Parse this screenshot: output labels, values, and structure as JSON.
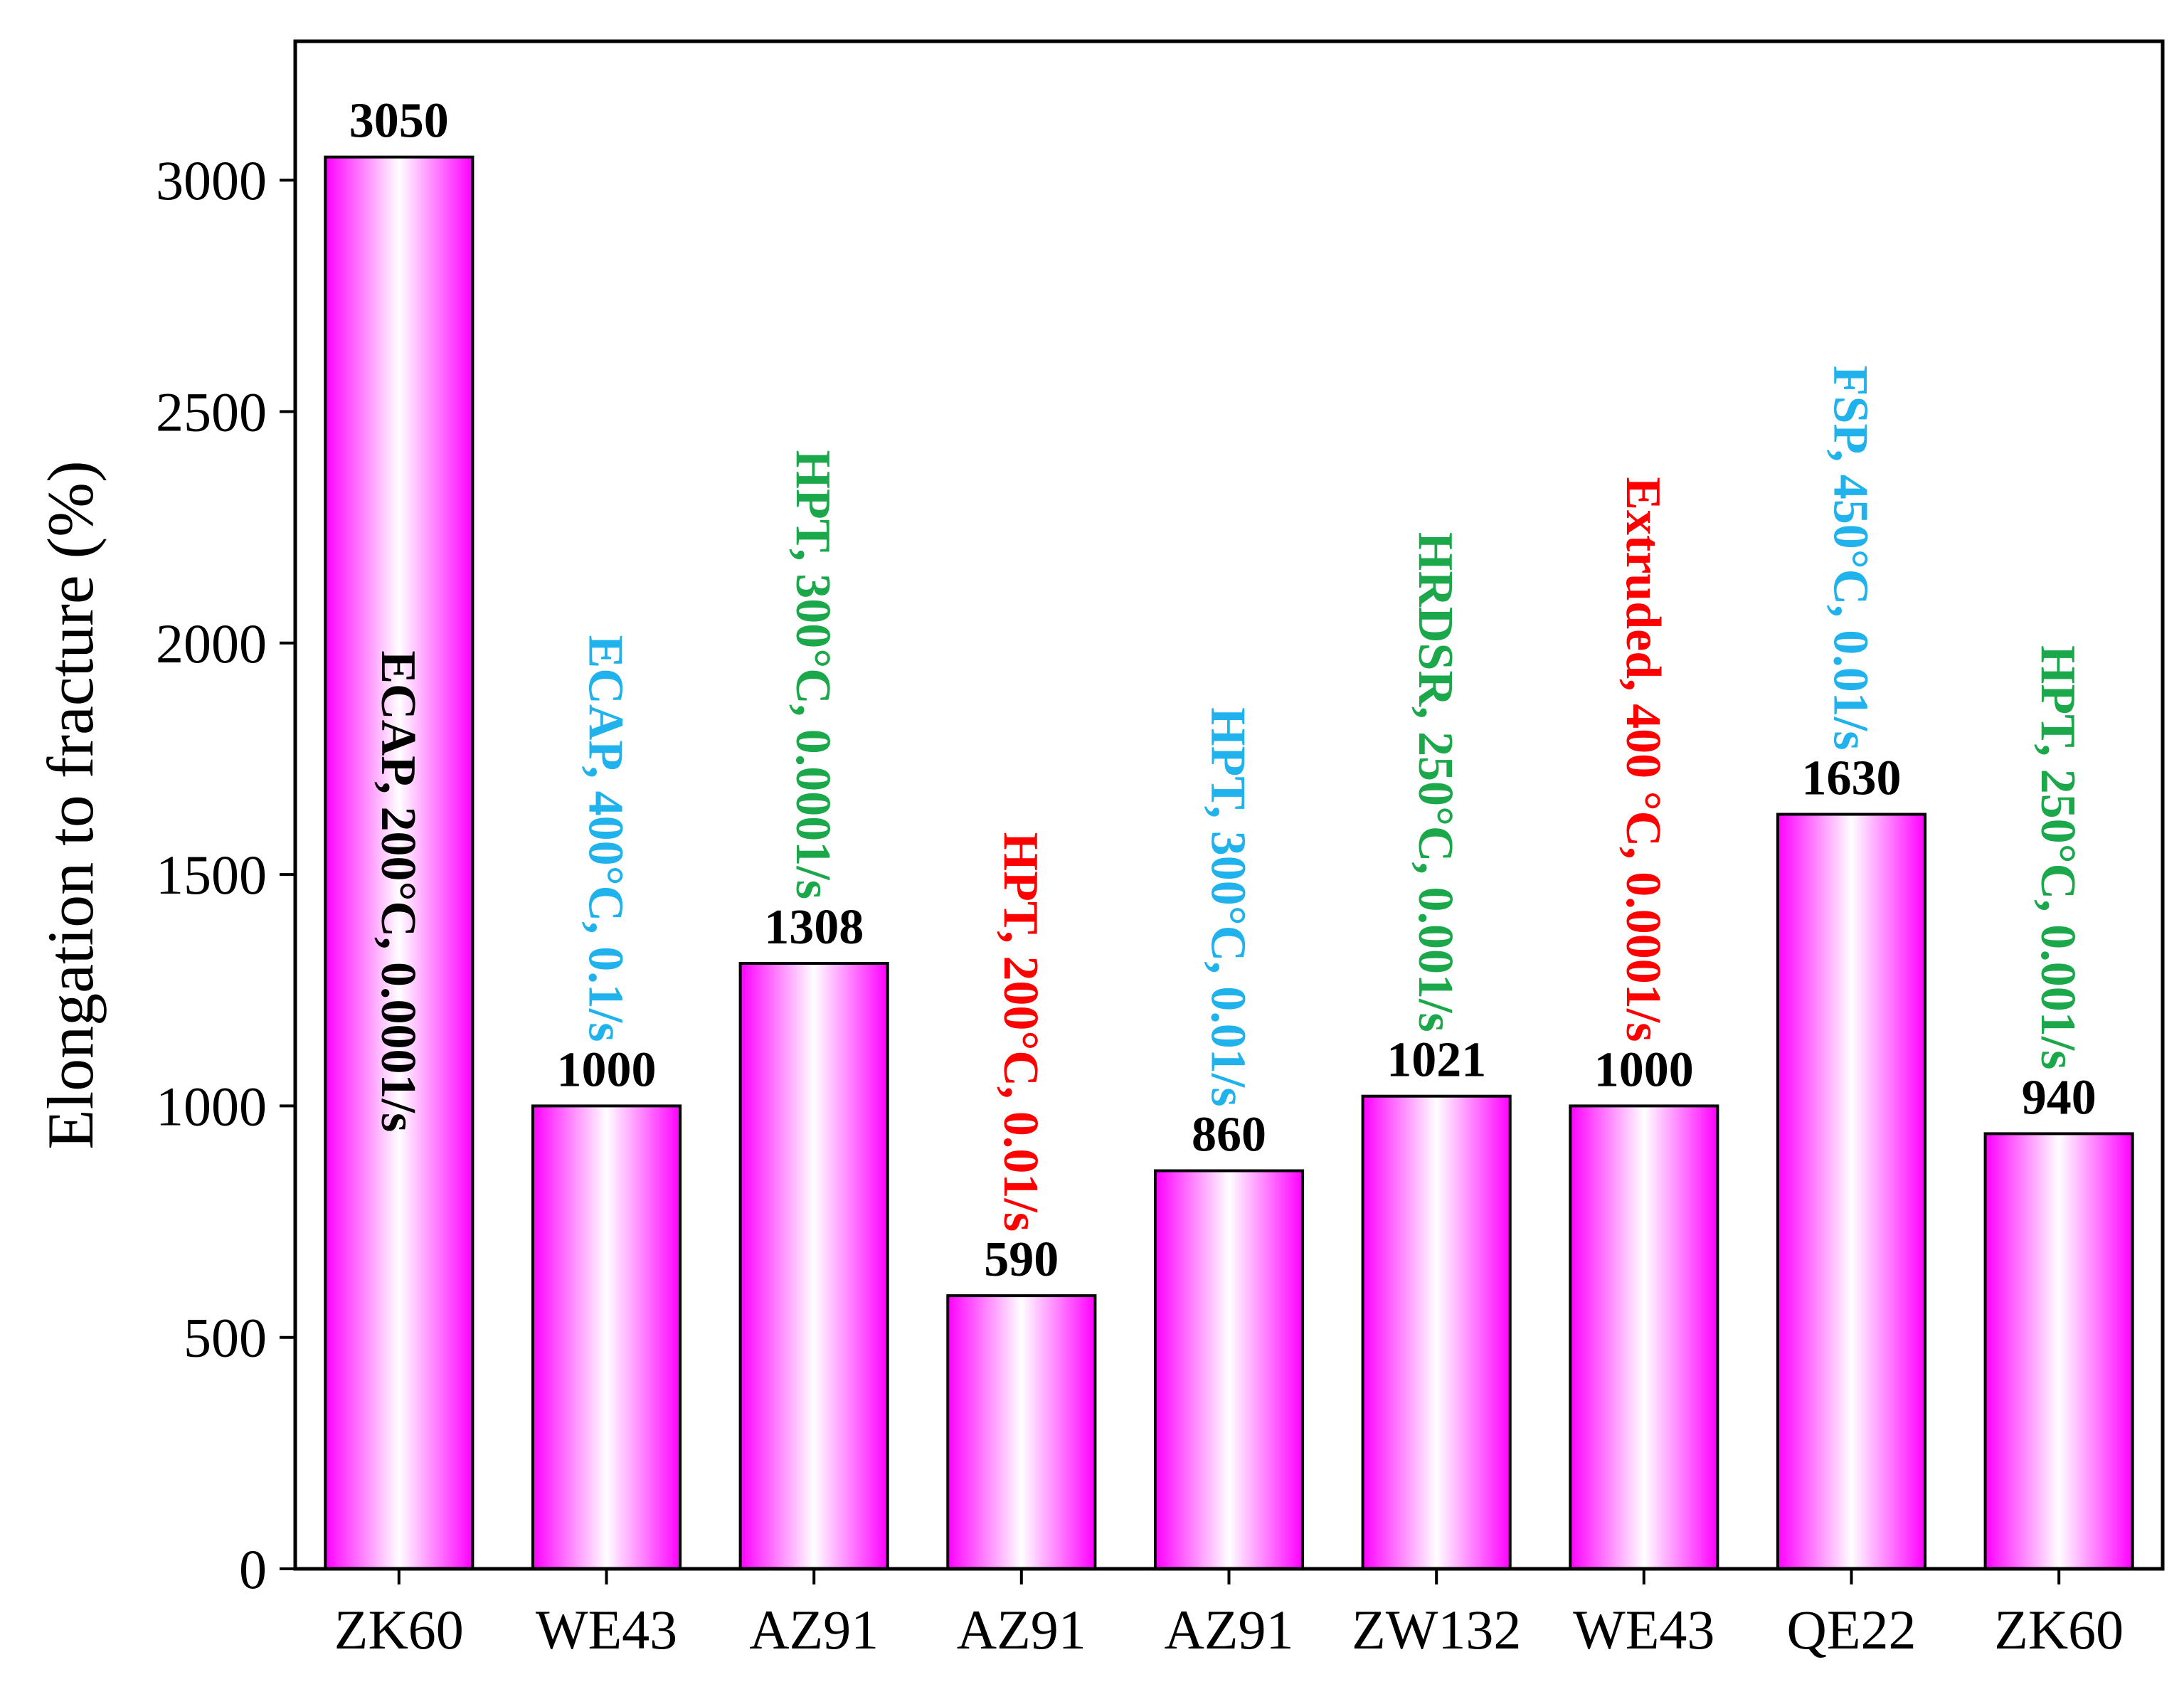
{
  "chart_data": {
    "type": "bar",
    "title": "",
    "xlabel": "",
    "ylabel": "Elongation to fracture (%)",
    "ylim": [
      0,
      3300
    ],
    "yticks": [
      0,
      500,
      1000,
      1500,
      2000,
      2500,
      3000
    ],
    "grid": false,
    "legend": "none",
    "bar_fill_edge": "#ff00ff",
    "bar_fill_center": "#ffffff",
    "bar_stroke": "#000000",
    "categories": [
      "ZK60",
      "WE43",
      "AZ91",
      "AZ91",
      "AZ91",
      "ZW132",
      "WE43",
      "QE22",
      "ZK60"
    ],
    "values": [
      3050,
      1000,
      1308,
      590,
      860,
      1021,
      1000,
      1630,
      940
    ],
    "value_labels": [
      "3050",
      "1000",
      "1308",
      "590",
      "860",
      "1021",
      "1000",
      "1630",
      "940"
    ],
    "annotations": [
      {
        "text": "ECAP, 200°C, 0.0001/s",
        "color": "#000000",
        "inside_bar": true
      },
      {
        "text": "ECAP, 400°C, 0.1/s",
        "color": "#1fb2ec",
        "inside_bar": false
      },
      {
        "text": "HPT, 300°C, 0.0001/s",
        "color": "#1ba84a",
        "inside_bar": false
      },
      {
        "text": "HPT, 200°C, 0.01/s",
        "color": "#ff0000",
        "inside_bar": false
      },
      {
        "text": "HPT, 300°C, 0.01/s",
        "color": "#1fb2ec",
        "inside_bar": false
      },
      {
        "text": "HRDSR, 250°C, 0.001/s",
        "color": "#1ba84a",
        "inside_bar": false
      },
      {
        "text": "Extruded, 400 °C, 0.0001/s",
        "color": "#ff0000",
        "inside_bar": false
      },
      {
        "text": "FSP, 450°C, 0.01/s",
        "color": "#1fb2ec",
        "inside_bar": false
      },
      {
        "text": "HPT, 250°C, 0.001/s",
        "color": "#1ba84a",
        "inside_bar": false
      }
    ]
  }
}
